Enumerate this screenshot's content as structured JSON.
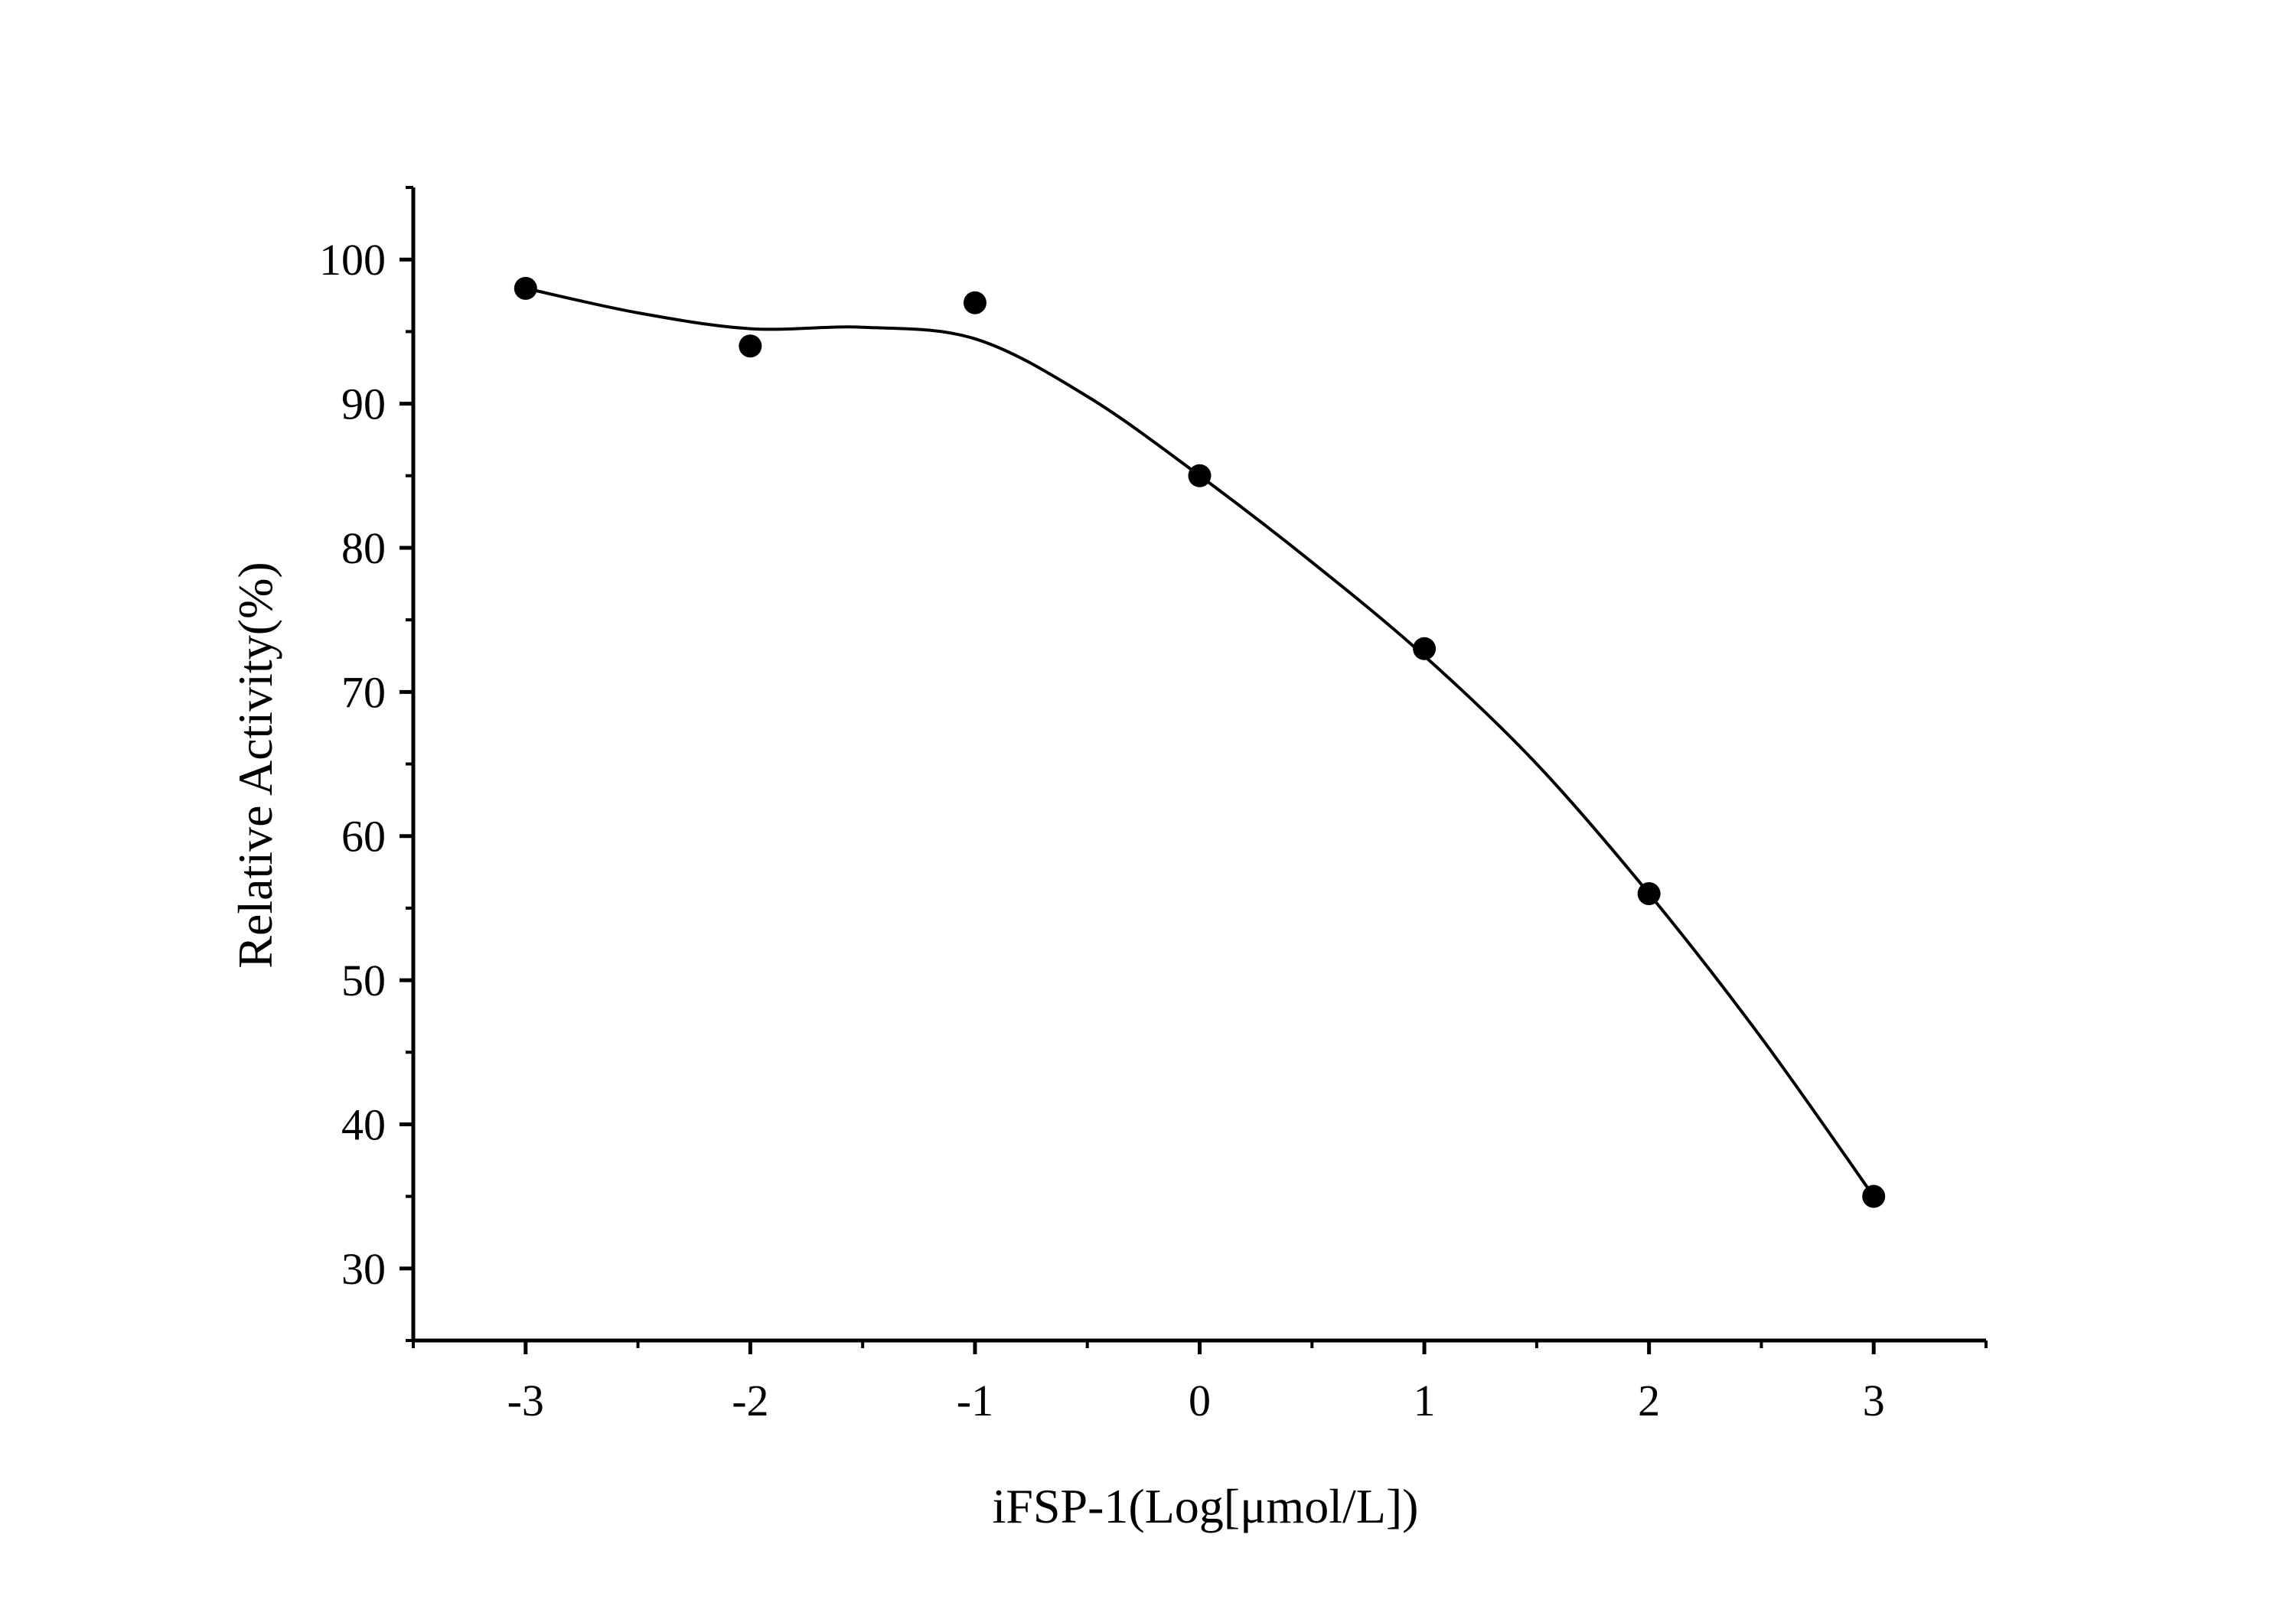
{
  "chart_data": {
    "type": "scatter",
    "title": "",
    "xlabel": "iFSP-1(Log[μmol/L])",
    "ylabel": "Relative Activity(%)",
    "xlim": [
      -3.5,
      3.5
    ],
    "ylim": [
      25,
      105
    ],
    "x_ticks": [
      -3,
      -2,
      -1,
      0,
      1,
      2,
      3
    ],
    "x_tick_labels": [
      "-3",
      "-2",
      "-1",
      "0",
      "1",
      "2",
      "3"
    ],
    "y_ticks": [
      30,
      40,
      50,
      60,
      70,
      80,
      90,
      100
    ],
    "y_tick_labels": [
      "30",
      "40",
      "50",
      "60",
      "70",
      "80",
      "90",
      "100"
    ],
    "x_minor_step": 0.5,
    "y_minor_step": 5,
    "grid": false,
    "legend": "none",
    "series": [
      {
        "points": [
          {
            "x": -3,
            "y": 98
          },
          {
            "x": -2,
            "y": 94
          },
          {
            "x": -1,
            "y": 97
          },
          {
            "x": 0,
            "y": 85
          },
          {
            "x": 1,
            "y": 73
          },
          {
            "x": 2,
            "y": 56
          },
          {
            "x": 3,
            "y": 35
          }
        ],
        "fit_curve": [
          {
            "x": -3,
            "y": 98
          },
          {
            "x": -2.5,
            "y": 96.3
          },
          {
            "x": -2,
            "y": 95.2
          },
          {
            "x": -1.5,
            "y": 95.3
          },
          {
            "x": -1,
            "y": 94.5
          },
          {
            "x": -0.5,
            "y": 90.5
          },
          {
            "x": 0,
            "y": 85
          },
          {
            "x": 0.5,
            "y": 79
          },
          {
            "x": 1,
            "y": 72.5
          },
          {
            "x": 1.5,
            "y": 65
          },
          {
            "x": 2,
            "y": 56
          },
          {
            "x": 2.5,
            "y": 46
          },
          {
            "x": 3,
            "y": 35
          }
        ],
        "marker": "filled-circle",
        "color": "#000000"
      }
    ]
  }
}
